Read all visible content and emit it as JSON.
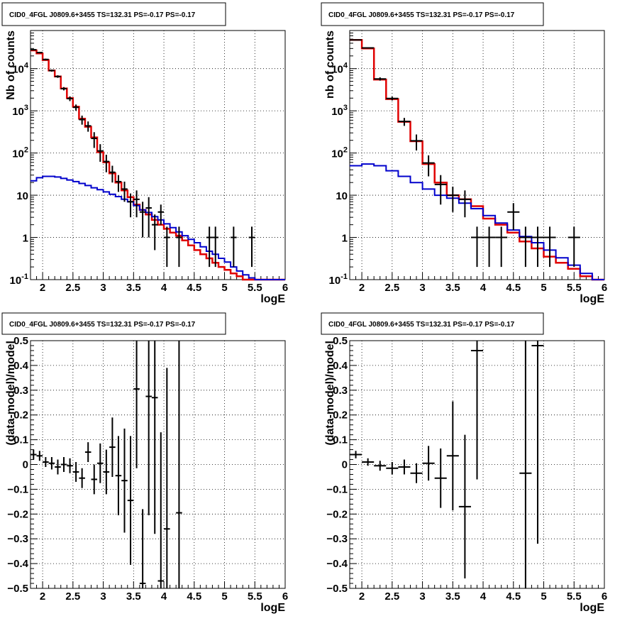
{
  "chart_data": [
    {
      "type": "line",
      "title": "CID0_4FGL J0809.6+3455 TS=132.31 PS=-0.17 PS=-0.17",
      "xlabel": "logE",
      "ylabel": "Nb of counts",
      "xlim": [
        1.8,
        6.0
      ],
      "ylim": [
        0.1,
        80000
      ],
      "yscale": "log",
      "grid": true,
      "x_ticks": [
        "2",
        "2.5",
        "3",
        "3.5",
        "4",
        "4.5",
        "5",
        "5.5",
        "6"
      ],
      "y_ticks": [
        "10^-1",
        "1",
        "10",
        "10^2",
        "10^3",
        "10^4"
      ],
      "colors": {
        "data": "#000000",
        "total_model": "#e00000",
        "background_model": "#0000cc"
      },
      "bin_edges": [
        1.8,
        1.9,
        2.0,
        2.1,
        2.2,
        2.3,
        2.4,
        2.5,
        2.6,
        2.7,
        2.8,
        2.9,
        3.0,
        3.1,
        3.2,
        3.3,
        3.4,
        3.5,
        3.6,
        3.7,
        3.8,
        3.9,
        4.0,
        4.1,
        4.2,
        4.3,
        4.4,
        4.5,
        4.6,
        4.7,
        4.8,
        4.9,
        5.0,
        5.1,
        5.2,
        5.3,
        5.4,
        5.5,
        5.6,
        5.7,
        5.8,
        5.9,
        6.0
      ],
      "series": [
        {
          "role": "total_model",
          "values": [
            27000,
            23000,
            16000,
            9000,
            6500,
            3400,
            2000,
            1250,
            650,
            420,
            235,
            105,
            60,
            33,
            20,
            13,
            9,
            6,
            4.5,
            3.5,
            2.6,
            2.0,
            1.6,
            1.3,
            1.1,
            0.85,
            0.65,
            0.5,
            0.4,
            0.32,
            0.25,
            0.2,
            0.17,
            0.14,
            0.12,
            0.1,
            0.1,
            0.1,
            0.1,
            0.1,
            0.1,
            0.1
          ]
        },
        {
          "role": "background_model",
          "values": [
            22,
            26,
            28,
            28,
            27,
            25,
            23,
            21,
            19,
            17,
            15,
            13.5,
            12,
            10.5,
            9.3,
            8,
            7,
            5.7,
            4.5,
            3.9,
            3.1,
            2.6,
            2.1,
            1.7,
            1.35,
            1.1,
            0.9,
            0.75,
            0.6,
            0.47,
            0.4,
            0.32,
            0.26,
            0.2,
            0.16,
            0.13,
            0.11,
            0.1,
            0.1,
            0.1,
            0.1,
            0.1
          ]
        },
        {
          "role": "data",
          "points": [
            [
              1.85,
              28000,
              1000
            ],
            [
              1.95,
              24000,
              900
            ],
            [
              2.05,
              16500,
              750
            ],
            [
              2.15,
              9000,
              500
            ],
            [
              2.25,
              6500,
              450
            ],
            [
              2.35,
              3350,
              300
            ],
            [
              2.45,
              1950,
              250
            ],
            [
              2.55,
              1210,
              200
            ],
            [
              2.65,
              620,
              150
            ],
            [
              2.75,
              440,
              120
            ],
            [
              2.85,
              222,
              90
            ],
            [
              2.95,
              112,
              50
            ],
            [
              3.05,
              63,
              28
            ],
            [
              3.15,
              35,
              15
            ],
            [
              3.25,
              21,
              9
            ],
            [
              3.35,
              14,
              7
            ],
            [
              3.45,
              7,
              4
            ],
            [
              3.55,
              8,
              5
            ],
            [
              3.65,
              4,
              3
            ],
            [
              3.75,
              5,
              4
            ],
            [
              3.85,
              2,
              1.5
            ],
            [
              3.95,
              4,
              2
            ],
            [
              4.05,
              1,
              0.8
            ],
            [
              4.25,
              1,
              0.8
            ],
            [
              4.75,
              1,
              0.8
            ],
            [
              4.85,
              1,
              0.8
            ],
            [
              5.15,
              1,
              0.8
            ],
            [
              5.45,
              1,
              0.8
            ]
          ]
        }
      ]
    },
    {
      "type": "line",
      "title": "CID0_4FGL J0809.6+3455 TS=132.31 PS=-0.17 PS=-0.17",
      "xlabel": "logE",
      "ylabel": "nb of counts",
      "xlim": [
        1.8,
        6.0
      ],
      "ylim": [
        0.1,
        80000
      ],
      "yscale": "log",
      "grid": true,
      "x_ticks": [
        "2",
        "2.5",
        "3",
        "3.5",
        "4",
        "4.5",
        "5",
        "5.5",
        "6"
      ],
      "y_ticks": [
        "10^-1",
        "1",
        "10",
        "10^2",
        "10^3",
        "10^4"
      ],
      "colors": {
        "data": "#000000",
        "total_model": "#e00000",
        "background_model": "#0000cc"
      },
      "bin_edges": [
        1.8,
        2.0,
        2.2,
        2.4,
        2.6,
        2.8,
        3.0,
        3.2,
        3.4,
        3.6,
        3.8,
        4.0,
        4.2,
        4.4,
        4.6,
        4.8,
        5.0,
        5.2,
        5.4,
        5.6,
        5.8,
        6.0
      ],
      "series": [
        {
          "role": "total_model",
          "values": [
            48000,
            30000,
            5500,
            1900,
            550,
            190,
            55,
            20,
            10,
            8,
            5.5,
            2.8,
            2.0,
            1.3,
            0.8,
            0.55,
            0.35,
            0.25,
            0.18,
            0.12,
            0.1
          ]
        },
        {
          "role": "background_model",
          "values": [
            50,
            55,
            50,
            38,
            28,
            20,
            14,
            10,
            8.5,
            6.5,
            4.8,
            3.3,
            2.2,
            1.5,
            1.05,
            0.75,
            0.5,
            0.33,
            0.22,
            0.14,
            0.1
          ]
        },
        {
          "role": "data",
          "points": [
            [
              1.9,
              48000,
              1500
            ],
            [
              2.1,
              31000,
              1000
            ],
            [
              2.3,
              5700,
              500
            ],
            [
              2.5,
              1960,
              200
            ],
            [
              2.7,
              560,
              120
            ],
            [
              2.9,
              195,
              80
            ],
            [
              3.1,
              58,
              30
            ],
            [
              3.3,
              18,
              12
            ],
            [
              3.5,
              10,
              6
            ],
            [
              3.7,
              8,
              5
            ],
            [
              3.9,
              1,
              0.8
            ],
            [
              4.1,
              1,
              0.8
            ],
            [
              4.3,
              1,
              0.8
            ],
            [
              4.5,
              4,
              2.5
            ],
            [
              4.7,
              1,
              0.8
            ],
            [
              4.9,
              1,
              0.8
            ],
            [
              5.1,
              1,
              0.8
            ],
            [
              5.5,
              1,
              0.8
            ]
          ]
        }
      ]
    },
    {
      "type": "scatter",
      "title": "CID0_4FGL J0809.6+3455 TS=132.31 PS=-0.17 PS=-0.17",
      "xlabel": "logE",
      "ylabel": "(data-model)/model",
      "xlim": [
        1.8,
        6.0
      ],
      "ylim": [
        -0.5,
        0.5
      ],
      "grid": true,
      "x_ticks": [
        "2",
        "2.5",
        "3",
        "3.5",
        "4",
        "4.5",
        "5",
        "5.5",
        "6"
      ],
      "y_ticks": [
        "−0.5",
        "−0.4",
        "−0.3",
        "−0.2",
        "−0.1",
        "0",
        "0.1",
        "0.2",
        "0.3",
        "0.4",
        "0.5"
      ],
      "x_half_width": 0.05,
      "points": [
        [
          1.85,
          0.04,
          0.02
        ],
        [
          1.95,
          0.035,
          0.02
        ],
        [
          2.05,
          0.01,
          0.02
        ],
        [
          2.15,
          0.005,
          0.025
        ],
        [
          2.25,
          -0.01,
          0.03
        ],
        [
          2.35,
          0.0,
          0.03
        ],
        [
          2.45,
          -0.005,
          0.03
        ],
        [
          2.55,
          -0.03,
          0.04
        ],
        [
          2.65,
          -0.055,
          0.04
        ],
        [
          2.75,
          0.05,
          0.04
        ],
        [
          2.85,
          -0.06,
          0.06
        ],
        [
          2.95,
          0.005,
          0.08
        ],
        [
          3.05,
          -0.03,
          0.09
        ],
        [
          3.15,
          0.07,
          0.12
        ],
        [
          3.25,
          -0.045,
          0.16
        ],
        [
          3.35,
          -0.065,
          0.21
        ],
        [
          3.45,
          -0.145,
          0.26
        ],
        [
          3.55,
          0.305,
          0.32
        ],
        [
          3.65,
          -0.48,
          0.3
        ],
        [
          3.75,
          0.275,
          0.48
        ],
        [
          3.85,
          0.27,
          0.55
        ],
        [
          3.95,
          -0.47,
          0.6
        ],
        [
          4.05,
          -0.26,
          0.65
        ],
        [
          4.25,
          -0.195,
          0.8
        ]
      ]
    },
    {
      "type": "scatter",
      "title": "CID0_4FGL J0809.6+3455 TS=132.31 PS=-0.17 PS=-0.17",
      "xlabel": "logE",
      "ylabel": "(data-model)/model",
      "xlim": [
        1.8,
        6.0
      ],
      "ylim": [
        -0.5,
        0.5
      ],
      "grid": true,
      "x_ticks": [
        "2",
        "2.5",
        "3",
        "3.5",
        "4",
        "4.5",
        "5",
        "5.5",
        "6"
      ],
      "y_ticks": [
        "−0.5",
        "−0.4",
        "−0.3",
        "−0.2",
        "−0.1",
        "0",
        "0.1",
        "0.2",
        "0.3",
        "0.4",
        "0.5"
      ],
      "x_half_width": 0.1,
      "points": [
        [
          1.9,
          0.04,
          0.015
        ],
        [
          2.1,
          0.01,
          0.015
        ],
        [
          2.3,
          -0.005,
          0.02
        ],
        [
          2.5,
          -0.015,
          0.025
        ],
        [
          2.7,
          -0.01,
          0.03
        ],
        [
          2.9,
          -0.035,
          0.04
        ],
        [
          3.1,
          0.005,
          0.07
        ],
        [
          3.3,
          -0.055,
          0.12
        ],
        [
          3.5,
          0.035,
          0.22
        ],
        [
          3.7,
          -0.17,
          0.29
        ],
        [
          3.9,
          0.46,
          0.52
        ],
        [
          4.7,
          -0.035,
          0.8
        ],
        [
          4.9,
          0.48,
          0.8
        ]
      ]
    }
  ]
}
